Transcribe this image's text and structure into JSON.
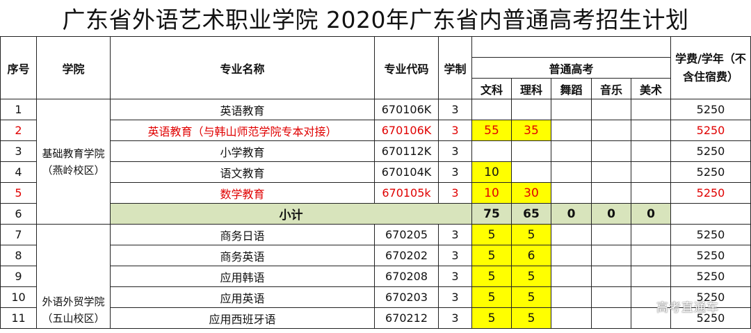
{
  "title": "广东省外语艺术职业学院  2020年广东省内普通高考招生计划",
  "headers": {
    "seq": "序号",
    "college": "学院",
    "major": "专业名称",
    "code": "专业代码",
    "duration": "学制",
    "group": "普通高考",
    "wenke": "文科",
    "like": "理科",
    "wudao": "舞蹈",
    "yinyue": "音乐",
    "meishu": "美术",
    "fee": "学费/学年（不含住宿费）"
  },
  "colleges": {
    "c1": "基础教育学院（燕岭校区）",
    "c2": "外语外贸学院（五山校区）"
  },
  "rows": [
    {
      "seq": "1",
      "major": "英语教育",
      "code": "670106K",
      "duration": "3",
      "wenke": "",
      "like": "",
      "wudao": "",
      "yinyue": "",
      "meishu": "",
      "fee": "5250"
    },
    {
      "seq": "2",
      "major": "英语教育（与韩山师范学院专本对接）",
      "code": "670106K",
      "duration": "3",
      "wenke": "55",
      "like": "35",
      "wudao": "",
      "yinyue": "",
      "meishu": "",
      "fee": "5250"
    },
    {
      "seq": "3",
      "major": "小学教育",
      "code": "670112K",
      "duration": "3",
      "wenke": "",
      "like": "",
      "wudao": "",
      "yinyue": "",
      "meishu": "",
      "fee": "5250"
    },
    {
      "seq": "4",
      "major": "语文教育",
      "code": "670104K",
      "duration": "3",
      "wenke": "10",
      "like": "",
      "wudao": "",
      "yinyue": "",
      "meishu": "",
      "fee": "5250"
    },
    {
      "seq": "5",
      "major": "数学教育",
      "code": "670105k",
      "duration": "3",
      "wenke": "10",
      "like": "30",
      "wudao": "",
      "yinyue": "",
      "meishu": "",
      "fee": "5250"
    }
  ],
  "subtotal": {
    "seq": "6",
    "label": "小计",
    "wenke": "75",
    "like": "65",
    "wudao": "0",
    "yinyue": "0",
    "meishu": "0"
  },
  "rows2": [
    {
      "seq": "7",
      "major": "商务日语",
      "code": "670205",
      "duration": "3",
      "wenke": "5",
      "like": "5",
      "fee": "5250"
    },
    {
      "seq": "8",
      "major": "商务英语",
      "code": "670202",
      "duration": "3",
      "wenke": "5",
      "like": "6",
      "fee": "5250"
    },
    {
      "seq": "9",
      "major": "应用韩语",
      "code": "670208",
      "duration": "3",
      "wenke": "5",
      "like": "5",
      "fee": "5250"
    },
    {
      "seq": "10",
      "major": "应用英语",
      "code": "670203",
      "duration": "3",
      "wenke": "5",
      "like": "5",
      "fee": "5250"
    },
    {
      "seq": "11",
      "major": "应用西班牙语",
      "code": "670212",
      "duration": "3",
      "wenke": "5",
      "like": "5",
      "fee": "5250"
    }
  ],
  "watermark": "高考直通车",
  "colors": {
    "highlight": "#ffff00",
    "subtotal": "#d8e4bc",
    "red_text": "#e00000"
  }
}
